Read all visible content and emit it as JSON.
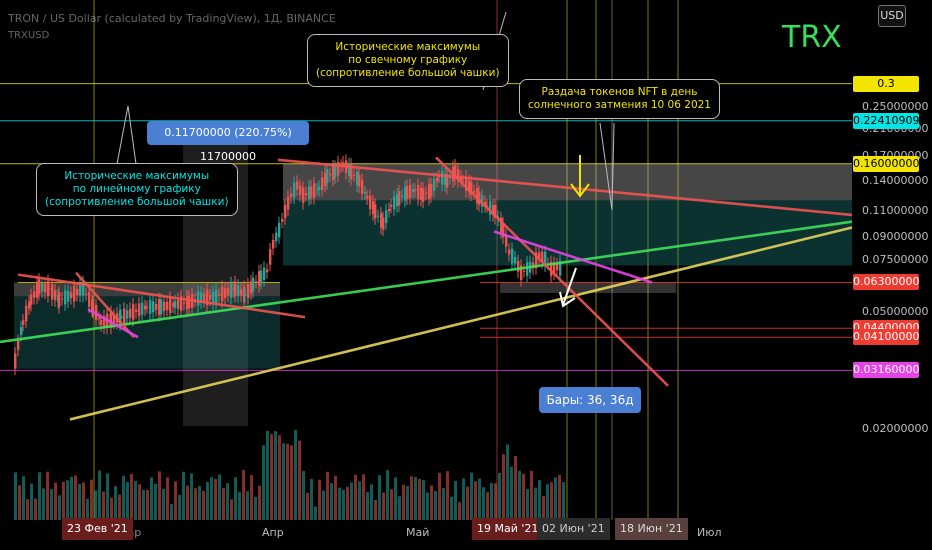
{
  "header": {
    "line1": "TRON / US Dollar (calculated by TradingView), 1Д, BINANCE",
    "line2": "TRXUSD",
    "watermark": "TRX",
    "currency": "USD"
  },
  "y_axis": {
    "ticks": [
      "0.25000000",
      "0.21000000",
      "0.17000000",
      "0.14000000",
      "0.11000000",
      "0.09000000",
      "0.07500000",
      "0.05000000",
      "0.02000000"
    ]
  },
  "price_labels": [
    {
      "text": "0.3",
      "value": 0.3,
      "bg": "#f2e600",
      "fg": "#000000"
    },
    {
      "text": "0.22410909",
      "value": 0.22410909,
      "bg": "#00e5e5",
      "fg": "#000000"
    },
    {
      "text": "0.16000000",
      "value": 0.16,
      "bg": "#f2e600",
      "fg": "#000000"
    },
    {
      "text": "0.06300000",
      "value": 0.063,
      "bg": "#ef3b32",
      "fg": "#ffffff"
    },
    {
      "text": "0.04400000",
      "value": 0.044,
      "bg": "#ef3b32",
      "fg": "#ffffff"
    },
    {
      "text": "0.04100000",
      "value": 0.041,
      "bg": "#ef3b32",
      "fg": "#ffffff"
    },
    {
      "text": "0.03160000",
      "value": 0.0316,
      "bg": "#e642e6",
      "fg": "#ffffff"
    }
  ],
  "x_axis": {
    "labels": [
      {
        "text": "Апр"
      },
      {
        "text": "Май"
      },
      {
        "text": "Июл"
      }
    ],
    "highlights": [
      {
        "text": "23 Фев '21",
        "bg": "#6a1d1d"
      },
      {
        "text": "19 Май '21",
        "bg": "#6a1d1d"
      },
      {
        "text": "02 Июн '21",
        "bg": "#2c2c2c"
      },
      {
        "text": "18 Июн '21",
        "bg": "#5a3f3f"
      }
    ],
    "hidden_label": "Мар"
  },
  "annotations": {
    "candle_callout": {
      "lines": [
        "Исторические максимумы",
        "по свечному графику",
        "(сопротивление большой чашки)"
      ],
      "color": "#f2e600"
    },
    "line_callout": {
      "lines": [
        "Исторические максимумы",
        "по линейному графику",
        "(сопротивление большой чашки)"
      ],
      "color": "#00e5e5"
    },
    "nft_callout": {
      "lines": [
        "Раздача токенов NFT  в день",
        "солнечного затмения 10 06 2021"
      ],
      "color": "#f2e600"
    },
    "measure_label": "0.11700000 (220.75%) 11700000",
    "bars_label": "Бары: 36, 36д"
  },
  "chart_data": {
    "type": "candlestick",
    "symbol": "TRXUSD",
    "timeframe": "1Д",
    "y_scale": "log",
    "horizontal_levels": [
      0.3,
      0.22410909,
      0.16,
      0.063,
      0.044,
      0.041,
      0.0316
    ],
    "price_path": [
      {
        "x": 14,
        "p": 0.034
      },
      {
        "x": 22,
        "p": 0.046
      },
      {
        "x": 30,
        "p": 0.055
      },
      {
        "x": 38,
        "p": 0.061
      },
      {
        "x": 48,
        "p": 0.06
      },
      {
        "x": 58,
        "p": 0.055
      },
      {
        "x": 70,
        "p": 0.057
      },
      {
        "x": 82,
        "p": 0.06
      },
      {
        "x": 92,
        "p": 0.052
      },
      {
        "x": 100,
        "p": 0.046
      },
      {
        "x": 110,
        "p": 0.047
      },
      {
        "x": 120,
        "p": 0.048
      },
      {
        "x": 132,
        "p": 0.05
      },
      {
        "x": 146,
        "p": 0.052
      },
      {
        "x": 160,
        "p": 0.052
      },
      {
        "x": 174,
        "p": 0.053
      },
      {
        "x": 188,
        "p": 0.054
      },
      {
        "x": 200,
        "p": 0.056
      },
      {
        "x": 212,
        "p": 0.056
      },
      {
        "x": 224,
        "p": 0.058
      },
      {
        "x": 234,
        "p": 0.06
      },
      {
        "x": 244,
        "p": 0.057
      },
      {
        "x": 252,
        "p": 0.062
      },
      {
        "x": 260,
        "p": 0.066
      },
      {
        "x": 266,
        "p": 0.069
      },
      {
        "x": 272,
        "p": 0.085
      },
      {
        "x": 278,
        "p": 0.095
      },
      {
        "x": 284,
        "p": 0.11
      },
      {
        "x": 290,
        "p": 0.125
      },
      {
        "x": 296,
        "p": 0.135
      },
      {
        "x": 302,
        "p": 0.125
      },
      {
        "x": 310,
        "p": 0.128
      },
      {
        "x": 318,
        "p": 0.132
      },
      {
        "x": 326,
        "p": 0.145
      },
      {
        "x": 334,
        "p": 0.15
      },
      {
        "x": 342,
        "p": 0.16
      },
      {
        "x": 350,
        "p": 0.15
      },
      {
        "x": 358,
        "p": 0.14
      },
      {
        "x": 366,
        "p": 0.123
      },
      {
        "x": 374,
        "p": 0.11
      },
      {
        "x": 382,
        "p": 0.1
      },
      {
        "x": 390,
        "p": 0.115
      },
      {
        "x": 398,
        "p": 0.122
      },
      {
        "x": 406,
        "p": 0.128
      },
      {
        "x": 414,
        "p": 0.13
      },
      {
        "x": 422,
        "p": 0.125
      },
      {
        "x": 430,
        "p": 0.13
      },
      {
        "x": 438,
        "p": 0.145
      },
      {
        "x": 446,
        "p": 0.14
      },
      {
        "x": 454,
        "p": 0.15
      },
      {
        "x": 462,
        "p": 0.14
      },
      {
        "x": 470,
        "p": 0.132
      },
      {
        "x": 478,
        "p": 0.122
      },
      {
        "x": 486,
        "p": 0.115
      },
      {
        "x": 494,
        "p": 0.11
      },
      {
        "x": 502,
        "p": 0.095
      },
      {
        "x": 508,
        "p": 0.08
      },
      {
        "x": 514,
        "p": 0.075
      },
      {
        "x": 520,
        "p": 0.068
      },
      {
        "x": 526,
        "p": 0.07
      },
      {
        "x": 532,
        "p": 0.072
      },
      {
        "x": 538,
        "p": 0.078
      },
      {
        "x": 544,
        "p": 0.076
      },
      {
        "x": 550,
        "p": 0.07
      },
      {
        "x": 556,
        "p": 0.071
      },
      {
        "x": 562,
        "p": 0.07
      }
    ],
    "trendlines": [
      {
        "x1": 278,
        "p1": 0.165,
        "x2": 852,
        "p2": 0.107,
        "color": "#ef5350"
      },
      {
        "x1": 0,
        "p1": 0.0395,
        "x2": 852,
        "p2": 0.1015,
        "color": "#3fe05a"
      },
      {
        "x1": 70,
        "p1": 0.0215,
        "x2": 852,
        "p2": 0.097,
        "color": "#e6d45a"
      },
      {
        "x1": 18,
        "p1": 0.067,
        "x2": 305,
        "p2": 0.048,
        "color": "#ef5350"
      },
      {
        "x1": 76,
        "p1": 0.068,
        "x2": 134,
        "p2": 0.041,
        "color": "#ef5350"
      },
      {
        "x1": 88,
        "p1": 0.051,
        "x2": 138,
        "p2": 0.041,
        "color": "#e642e6"
      },
      {
        "x1": 436,
        "p1": 0.168,
        "x2": 668,
        "p2": 0.028,
        "color": "#ef5350"
      },
      {
        "x1": 494,
        "p1": 0.094,
        "x2": 652,
        "p2": 0.063,
        "color": "#e642e6"
      }
    ],
    "zones": [
      {
        "x1": 283,
        "x2": 852,
        "p1": 0.16,
        "p2": 0.12,
        "color": "rgba(200,200,200,0.35)"
      },
      {
        "x1": 283,
        "x2": 852,
        "p1": 0.12,
        "p2": 0.072,
        "color": "rgba(32,140,140,0.35)"
      },
      {
        "x1": 14,
        "x2": 280,
        "p1": 0.063,
        "p2": 0.0565,
        "color": "rgba(200,200,200,0.30)"
      },
      {
        "x1": 14,
        "x2": 280,
        "p1": 0.0565,
        "p2": 0.032,
        "color": "rgba(32,120,120,0.35)"
      },
      {
        "x1": 500,
        "x2": 676,
        "p1": 0.063,
        "p2": 0.058,
        "color": "rgba(200,200,200,0.25)"
      }
    ]
  }
}
